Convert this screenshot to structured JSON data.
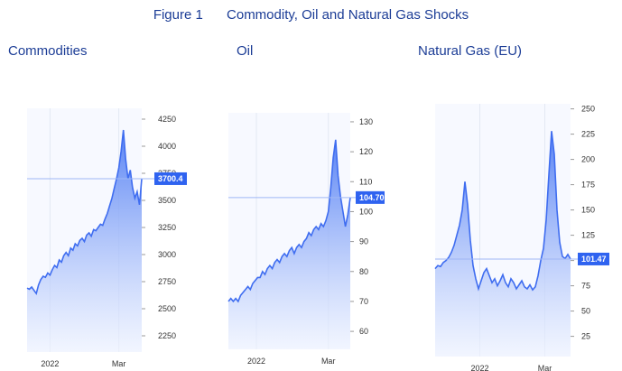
{
  "figure": {
    "number": "Figure 1",
    "title": "Commodity, Oil and Natural Gas Shocks"
  },
  "colors": {
    "line": "#3f6df0",
    "fill_top": "#4f7cf3",
    "fill_bottom": "#eef3ff",
    "badge": "#2f63f0",
    "ref_line": "#9fb7f5",
    "title": "#1c3d96"
  },
  "chart_data": [
    {
      "type": "area",
      "title": "Commodities",
      "ylim": [
        2100,
        4350
      ],
      "yticks": [
        2250,
        2500,
        2750,
        3000,
        3250,
        3500,
        3750,
        4000,
        4250
      ],
      "xticks": [
        {
          "label": "2022",
          "pos": 0.2
        },
        {
          "label": "Mar",
          "pos": 0.8
        }
      ],
      "current_label": "3700.4",
      "current_value": 3700.4,
      "values": [
        2690,
        2680,
        2700,
        2670,
        2640,
        2720,
        2770,
        2800,
        2790,
        2830,
        2810,
        2860,
        2900,
        2880,
        2950,
        2930,
        2990,
        3020,
        2990,
        3060,
        3040,
        3100,
        3080,
        3130,
        3150,
        3120,
        3180,
        3200,
        3170,
        3230,
        3220,
        3250,
        3280,
        3270,
        3330,
        3380,
        3450,
        3520,
        3610,
        3700,
        3800,
        3950,
        4150,
        3880,
        3700,
        3780,
        3620,
        3520,
        3580,
        3460,
        3700
      ]
    },
    {
      "type": "area",
      "title": "Oil",
      "ylim": [
        54,
        133
      ],
      "yticks": [
        60,
        70,
        80,
        90,
        100,
        110,
        120,
        130
      ],
      "xticks": [
        {
          "label": "2022",
          "pos": 0.23
        },
        {
          "label": "Mar",
          "pos": 0.82
        }
      ],
      "current_label": "104.70",
      "current_value": 104.7,
      "values": [
        70,
        71,
        70,
        71,
        70,
        72,
        73,
        74,
        75,
        74,
        76,
        77,
        78,
        78,
        80,
        79,
        81,
        82,
        81,
        83,
        84,
        83,
        85,
        86,
        85,
        87,
        88,
        86,
        88,
        89,
        88,
        90,
        91,
        93,
        92,
        94,
        95,
        94,
        96,
        95,
        97,
        100,
        108,
        118,
        124,
        112,
        105,
        100,
        95,
        99,
        104.7
      ]
    },
    {
      "type": "area",
      "title": "Natural Gas (EU)",
      "ylim": [
        5,
        255
      ],
      "yticks": [
        25,
        50,
        75,
        100,
        125,
        150,
        175,
        200,
        225,
        250
      ],
      "xticks": [
        {
          "label": "2022",
          "pos": 0.33
        },
        {
          "label": "Mar",
          "pos": 0.81
        }
      ],
      "current_label": "101.47",
      "current_value": 101.47,
      "values": [
        92,
        95,
        94,
        98,
        100,
        103,
        108,
        115,
        125,
        135,
        150,
        178,
        155,
        120,
        95,
        82,
        72,
        80,
        88,
        92,
        85,
        78,
        82,
        75,
        80,
        86,
        78,
        74,
        82,
        78,
        72,
        76,
        80,
        74,
        72,
        76,
        71,
        74,
        85,
        100,
        112,
        140,
        185,
        228,
        205,
        150,
        118,
        104,
        102,
        106,
        101.47
      ]
    }
  ]
}
